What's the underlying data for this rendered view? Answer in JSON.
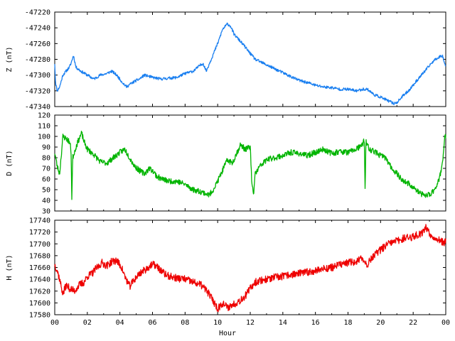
{
  "chart_data": {
    "type": "line",
    "xlabel": "Hour",
    "x_ticks": [
      "00",
      "02",
      "04",
      "06",
      "08",
      "10",
      "12",
      "14",
      "16",
      "18",
      "20",
      "22",
      "00"
    ],
    "xlim": [
      0,
      24
    ],
    "grid": false,
    "panels": [
      {
        "ylabel": "Z (nT)",
        "ylim": [
          -47340,
          -47220
        ],
        "y_ticks": [
          -47220,
          -47240,
          -47260,
          -47280,
          -47300,
          -47320,
          -47340
        ],
        "color": "#1a7ff0",
        "noise": 1.5,
        "seed": 11,
        "x": [
          0,
          0.05,
          0.15,
          0.3,
          0.5,
          0.7,
          0.9,
          1.0,
          1.15,
          1.3,
          1.6,
          2.0,
          2.4,
          2.8,
          3.2,
          3.5,
          3.8,
          4.1,
          4.4,
          4.6,
          4.9,
          5.2,
          5.5,
          6.0,
          6.5,
          7.0,
          7.5,
          8.0,
          8.5,
          8.9,
          9.1,
          9.3,
          9.6,
          10.0,
          10.3,
          10.6,
          10.8,
          11.0,
          11.3,
          11.6,
          11.9,
          12.3,
          12.8,
          13.3,
          13.8,
          14.3,
          14.8,
          15.2,
          15.6,
          16.0,
          16.5,
          17.0,
          17.5,
          18.0,
          18.5,
          18.9,
          19.2,
          19.6,
          20.0,
          20.4,
          20.8,
          21.0,
          21.3,
          21.8,
          22.3,
          22.8,
          23.2,
          23.5,
          23.8,
          24.0
        ],
        "values": [
          -47285,
          -47310,
          -47320,
          -47315,
          -47300,
          -47295,
          -47290,
          -47285,
          -47275,
          -47290,
          -47295,
          -47300,
          -47305,
          -47300,
          -47298,
          -47295,
          -47300,
          -47308,
          -47315,
          -47312,
          -47308,
          -47305,
          -47300,
          -47303,
          -47305,
          -47304,
          -47303,
          -47298,
          -47295,
          -47288,
          -47285,
          -47295,
          -47280,
          -47260,
          -47242,
          -47235,
          -47238,
          -47248,
          -47255,
          -47262,
          -47270,
          -47280,
          -47285,
          -47290,
          -47295,
          -47300,
          -47305,
          -47308,
          -47310,
          -47313,
          -47315,
          -47316,
          -47318,
          -47318,
          -47320,
          -47318,
          -47318,
          -47325,
          -47328,
          -47332,
          -47336,
          -47335,
          -47328,
          -47318,
          -47305,
          -47293,
          -47283,
          -47278,
          -47275,
          -47290
        ]
      },
      {
        "ylabel": "D (nT)",
        "ylim": [
          30,
          120
        ],
        "y_ticks": [
          120,
          110,
          100,
          90,
          80,
          70,
          60,
          50,
          40,
          30
        ],
        "color": "#00b400",
        "noise": 3,
        "seed": 23,
        "x": [
          0,
          0.15,
          0.3,
          0.5,
          0.7,
          0.9,
          1.0,
          1.05,
          1.1,
          1.3,
          1.5,
          1.65,
          1.8,
          2.0,
          2.4,
          2.8,
          3.2,
          3.6,
          4.0,
          4.3,
          4.6,
          4.9,
          5.2,
          5.5,
          5.8,
          6.0,
          6.3,
          6.6,
          7.0,
          7.5,
          8.0,
          8.5,
          9.0,
          9.5,
          9.8,
          10.0,
          10.3,
          10.6,
          10.9,
          11.1,
          11.4,
          11.7,
          12.0,
          12.1,
          12.2,
          12.3,
          12.6,
          13.0,
          13.5,
          14.0,
          14.5,
          15.0,
          15.5,
          16.0,
          16.5,
          17.0,
          17.5,
          18.0,
          18.5,
          18.9,
          19.0,
          19.05,
          19.1,
          19.3,
          19.6,
          20.0,
          20.3,
          20.6,
          21.0,
          21.4,
          21.8,
          22.0,
          22.3,
          22.6,
          23.0,
          23.3,
          23.6,
          23.8,
          23.95
        ],
        "values": [
          85,
          72,
          65,
          100,
          98,
          95,
          88,
          40,
          80,
          90,
          98,
          103,
          95,
          88,
          83,
          76,
          75,
          80,
          85,
          88,
          80,
          72,
          68,
          65,
          70,
          68,
          62,
          60,
          58,
          58,
          55,
          50,
          48,
          45,
          52,
          58,
          68,
          78,
          75,
          82,
          92,
          88,
          90,
          55,
          45,
          65,
          72,
          78,
          80,
          82,
          85,
          84,
          82,
          85,
          88,
          84,
          86,
          85,
          88,
          92,
          98,
          48,
          95,
          88,
          86,
          82,
          80,
          72,
          65,
          58,
          55,
          52,
          48,
          45,
          45,
          50,
          60,
          75,
          100
        ]
      },
      {
        "ylabel": "H (nT)",
        "ylim": [
          17580,
          17740
        ],
        "y_ticks": [
          17740,
          17720,
          17700,
          17680,
          17660,
          17640,
          17620,
          17600,
          17580
        ],
        "color": "#ee0000",
        "noise": 4,
        "seed": 37,
        "x": [
          0,
          0.15,
          0.3,
          0.5,
          0.7,
          0.9,
          1.2,
          1.5,
          1.8,
          2.0,
          2.3,
          2.6,
          2.9,
          3.2,
          3.5,
          3.8,
          4.1,
          4.3,
          4.6,
          4.9,
          5.2,
          5.5,
          5.8,
          6.1,
          6.4,
          6.7,
          7.0,
          7.5,
          8.0,
          8.5,
          9.0,
          9.4,
          9.7,
          10.0,
          10.3,
          10.6,
          11.0,
          11.4,
          11.8,
          12.0,
          12.3,
          12.6,
          13.0,
          13.5,
          14.0,
          14.5,
          15.0,
          15.5,
          16.0,
          16.5,
          17.0,
          17.5,
          18.0,
          18.5,
          18.9,
          19.2,
          19.5,
          19.8,
          20.1,
          20.5,
          21.0,
          21.5,
          22.0,
          22.5,
          22.8,
          23.0,
          23.3,
          23.6,
          23.9,
          24.0
        ],
        "values": [
          17665,
          17655,
          17640,
          17615,
          17630,
          17625,
          17620,
          17630,
          17635,
          17645,
          17650,
          17660,
          17668,
          17663,
          17670,
          17672,
          17660,
          17645,
          17628,
          17640,
          17650,
          17655,
          17662,
          17665,
          17658,
          17650,
          17645,
          17642,
          17640,
          17635,
          17630,
          17618,
          17605,
          17590,
          17600,
          17592,
          17598,
          17605,
          17615,
          17625,
          17635,
          17638,
          17640,
          17643,
          17645,
          17648,
          17650,
          17652,
          17655,
          17658,
          17660,
          17665,
          17668,
          17670,
          17675,
          17665,
          17678,
          17685,
          17692,
          17700,
          17705,
          17710,
          17712,
          17718,
          17728,
          17718,
          17710,
          17708,
          17700,
          17705
        ]
      }
    ]
  }
}
